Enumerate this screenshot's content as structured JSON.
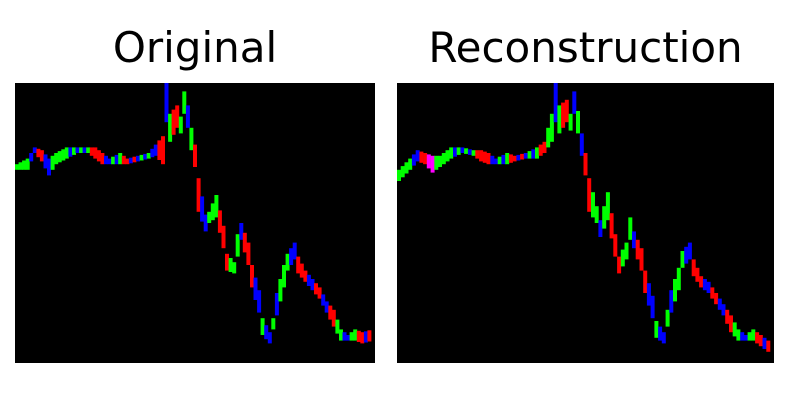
{
  "panels": [
    {
      "title": "Original",
      "background": "#000000",
      "trace": [
        {
          "p": 0.0,
          "v": 0.3,
          "s": 0.01,
          "c": "#00ff00"
        },
        {
          "p": 0.03,
          "v": 0.29,
          "s": 0.02,
          "c": "#00ff00"
        },
        {
          "p": 0.05,
          "v": 0.24,
          "s": 0.01,
          "c": "#0000ff"
        },
        {
          "p": 0.07,
          "v": 0.26,
          "s": 0.02,
          "c": "#ff0000"
        },
        {
          "p": 0.09,
          "v": 0.3,
          "s": 0.03,
          "c": "#0000ff"
        },
        {
          "p": 0.11,
          "v": 0.27,
          "s": 0.02,
          "c": "#00ff00"
        },
        {
          "p": 0.14,
          "v": 0.25,
          "s": 0.02,
          "c": "#00ff00"
        },
        {
          "p": 0.17,
          "v": 0.24,
          "s": 0.01,
          "c": "#0000ff"
        },
        {
          "p": 0.2,
          "v": 0.24,
          "s": 0.01,
          "c": "#00ff00"
        },
        {
          "p": 0.22,
          "v": 0.25,
          "s": 0.02,
          "c": "#ff0000"
        },
        {
          "p": 0.24,
          "v": 0.27,
          "s": 0.02,
          "c": "#ff0000"
        },
        {
          "p": 0.26,
          "v": 0.28,
          "s": 0.01,
          "c": "#0000ff"
        },
        {
          "p": 0.29,
          "v": 0.27,
          "s": 0.02,
          "c": "#00ff00"
        },
        {
          "p": 0.31,
          "v": 0.28,
          "s": 0.01,
          "c": "#ff0000"
        },
        {
          "p": 0.34,
          "v": 0.27,
          "s": 0.01,
          "c": "#0000ff"
        },
        {
          "p": 0.37,
          "v": 0.26,
          "s": 0.01,
          "c": "#00ff00"
        },
        {
          "p": 0.39,
          "v": 0.24,
          "s": 0.02,
          "c": "#0000ff"
        },
        {
          "p": 0.41,
          "v": 0.24,
          "s": 0.05,
          "c": "#ff0000"
        },
        {
          "p": 0.42,
          "v": 0.06,
          "s": 0.08,
          "c": "#0000ff"
        },
        {
          "p": 0.43,
          "v": 0.16,
          "s": 0.05,
          "c": "#00ff00"
        },
        {
          "p": 0.45,
          "v": 0.12,
          "s": 0.04,
          "c": "#ff0000"
        },
        {
          "p": 0.46,
          "v": 0.15,
          "s": 0.03,
          "c": "#00ff00"
        },
        {
          "p": 0.47,
          "v": 0.07,
          "s": 0.04,
          "c": "#00ff00"
        },
        {
          "p": 0.48,
          "v": 0.12,
          "s": 0.04,
          "c": "#0000ff"
        },
        {
          "p": 0.49,
          "v": 0.2,
          "s": 0.04,
          "c": "#00ff00"
        },
        {
          "p": 0.5,
          "v": 0.26,
          "s": 0.04,
          "c": "#ff0000"
        },
        {
          "p": 0.51,
          "v": 0.4,
          "s": 0.06,
          "c": "#ff0000"
        },
        {
          "p": 0.53,
          "v": 0.5,
          "s": 0.03,
          "c": "#0000ff"
        },
        {
          "p": 0.54,
          "v": 0.48,
          "s": 0.02,
          "c": "#00ff00"
        },
        {
          "p": 0.56,
          "v": 0.44,
          "s": 0.04,
          "c": "#00ff00"
        },
        {
          "p": 0.58,
          "v": 0.55,
          "s": 0.04,
          "c": "#ff0000"
        },
        {
          "p": 0.59,
          "v": 0.64,
          "s": 0.03,
          "c": "#ff0000"
        },
        {
          "p": 0.61,
          "v": 0.66,
          "s": 0.02,
          "c": "#00ff00"
        },
        {
          "p": 0.62,
          "v": 0.58,
          "s": 0.04,
          "c": "#00ff00"
        },
        {
          "p": 0.63,
          "v": 0.53,
          "s": 0.03,
          "c": "#0000ff"
        },
        {
          "p": 0.65,
          "v": 0.61,
          "s": 0.04,
          "c": "#ff0000"
        },
        {
          "p": 0.66,
          "v": 0.69,
          "s": 0.04,
          "c": "#ff0000"
        },
        {
          "p": 0.68,
          "v": 0.78,
          "s": 0.04,
          "c": "#0000ff"
        },
        {
          "p": 0.69,
          "v": 0.87,
          "s": 0.03,
          "c": "#00ff00"
        },
        {
          "p": 0.71,
          "v": 0.91,
          "s": 0.02,
          "c": "#0000ff"
        },
        {
          "p": 0.72,
          "v": 0.86,
          "s": 0.02,
          "c": "#00ff00"
        },
        {
          "p": 0.73,
          "v": 0.79,
          "s": 0.04,
          "c": "#0000ff"
        },
        {
          "p": 0.75,
          "v": 0.69,
          "s": 0.04,
          "c": "#00ff00"
        },
        {
          "p": 0.76,
          "v": 0.64,
          "s": 0.03,
          "c": "#00ff00"
        },
        {
          "p": 0.78,
          "v": 0.6,
          "s": 0.03,
          "c": "#0000ff"
        },
        {
          "p": 0.79,
          "v": 0.65,
          "s": 0.03,
          "c": "#ff0000"
        },
        {
          "p": 0.81,
          "v": 0.69,
          "s": 0.02,
          "c": "#ff0000"
        },
        {
          "p": 0.83,
          "v": 0.72,
          "s": 0.02,
          "c": "#0000ff"
        },
        {
          "p": 0.85,
          "v": 0.75,
          "s": 0.02,
          "c": "#ff0000"
        },
        {
          "p": 0.87,
          "v": 0.8,
          "s": 0.02,
          "c": "#0000ff"
        },
        {
          "p": 0.89,
          "v": 0.84,
          "s": 0.03,
          "c": "#ff0000"
        },
        {
          "p": 0.91,
          "v": 0.9,
          "s": 0.02,
          "c": "#00ff00"
        },
        {
          "p": 0.93,
          "v": 0.91,
          "s": 0.01,
          "c": "#0000ff"
        },
        {
          "p": 0.95,
          "v": 0.9,
          "s": 0.02,
          "c": "#00ff00"
        },
        {
          "p": 0.97,
          "v": 0.91,
          "s": 0.02,
          "c": "#ff0000"
        },
        {
          "p": 1.0,
          "v": 0.9,
          "s": 0.02,
          "c": "#0000ff"
        }
      ]
    },
    {
      "title": "Reconstruction",
      "background": "#000000",
      "trace": [
        {
          "p": 0.0,
          "v": 0.33,
          "s": 0.02,
          "c": "#00ff00"
        },
        {
          "p": 0.03,
          "v": 0.29,
          "s": 0.02,
          "c": "#00ff00"
        },
        {
          "p": 0.05,
          "v": 0.26,
          "s": 0.02,
          "c": "#0000ff"
        },
        {
          "p": 0.07,
          "v": 0.27,
          "s": 0.02,
          "c": "#ff0000"
        },
        {
          "p": 0.09,
          "v": 0.29,
          "s": 0.03,
          "c": "#ff00ff"
        },
        {
          "p": 0.11,
          "v": 0.28,
          "s": 0.02,
          "c": "#00ff00"
        },
        {
          "p": 0.14,
          "v": 0.25,
          "s": 0.02,
          "c": "#00ff00"
        },
        {
          "p": 0.17,
          "v": 0.24,
          "s": 0.01,
          "c": "#0000ff"
        },
        {
          "p": 0.2,
          "v": 0.25,
          "s": 0.01,
          "c": "#00ff00"
        },
        {
          "p": 0.22,
          "v": 0.26,
          "s": 0.02,
          "c": "#ff0000"
        },
        {
          "p": 0.24,
          "v": 0.27,
          "s": 0.02,
          "c": "#ff0000"
        },
        {
          "p": 0.26,
          "v": 0.28,
          "s": 0.01,
          "c": "#0000ff"
        },
        {
          "p": 0.29,
          "v": 0.27,
          "s": 0.02,
          "c": "#00ff00"
        },
        {
          "p": 0.31,
          "v": 0.27,
          "s": 0.01,
          "c": "#ff0000"
        },
        {
          "p": 0.34,
          "v": 0.26,
          "s": 0.01,
          "c": "#0000ff"
        },
        {
          "p": 0.37,
          "v": 0.25,
          "s": 0.02,
          "c": "#00ff00"
        },
        {
          "p": 0.39,
          "v": 0.23,
          "s": 0.02,
          "c": "#ff0000"
        },
        {
          "p": 0.41,
          "v": 0.16,
          "s": 0.05,
          "c": "#00ff00"
        },
        {
          "p": 0.42,
          "v": 0.06,
          "s": 0.08,
          "c": "#0000ff"
        },
        {
          "p": 0.43,
          "v": 0.13,
          "s": 0.05,
          "c": "#00ff00"
        },
        {
          "p": 0.45,
          "v": 0.1,
          "s": 0.04,
          "c": "#ff0000"
        },
        {
          "p": 0.46,
          "v": 0.14,
          "s": 0.03,
          "c": "#00ff00"
        },
        {
          "p": 0.47,
          "v": 0.07,
          "s": 0.04,
          "c": "#0000ff"
        },
        {
          "p": 0.48,
          "v": 0.14,
          "s": 0.04,
          "c": "#00ff00"
        },
        {
          "p": 0.49,
          "v": 0.22,
          "s": 0.04,
          "c": "#0000ff"
        },
        {
          "p": 0.5,
          "v": 0.29,
          "s": 0.04,
          "c": "#ff0000"
        },
        {
          "p": 0.51,
          "v": 0.4,
          "s": 0.06,
          "c": "#ff0000"
        },
        {
          "p": 0.53,
          "v": 0.47,
          "s": 0.03,
          "c": "#00ff00"
        },
        {
          "p": 0.54,
          "v": 0.52,
          "s": 0.03,
          "c": "#0000ff"
        },
        {
          "p": 0.56,
          "v": 0.44,
          "s": 0.05,
          "c": "#00ff00"
        },
        {
          "p": 0.58,
          "v": 0.58,
          "s": 0.04,
          "c": "#ff0000"
        },
        {
          "p": 0.59,
          "v": 0.65,
          "s": 0.03,
          "c": "#ff0000"
        },
        {
          "p": 0.61,
          "v": 0.6,
          "s": 0.03,
          "c": "#00ff00"
        },
        {
          "p": 0.62,
          "v": 0.52,
          "s": 0.04,
          "c": "#00ff00"
        },
        {
          "p": 0.63,
          "v": 0.56,
          "s": 0.03,
          "c": "#0000ff"
        },
        {
          "p": 0.65,
          "v": 0.63,
          "s": 0.04,
          "c": "#ff0000"
        },
        {
          "p": 0.66,
          "v": 0.71,
          "s": 0.04,
          "c": "#ff0000"
        },
        {
          "p": 0.68,
          "v": 0.8,
          "s": 0.04,
          "c": "#0000ff"
        },
        {
          "p": 0.69,
          "v": 0.88,
          "s": 0.03,
          "c": "#00ff00"
        },
        {
          "p": 0.71,
          "v": 0.91,
          "s": 0.02,
          "c": "#0000ff"
        },
        {
          "p": 0.72,
          "v": 0.84,
          "s": 0.03,
          "c": "#00ff00"
        },
        {
          "p": 0.73,
          "v": 0.78,
          "s": 0.04,
          "c": "#0000ff"
        },
        {
          "p": 0.75,
          "v": 0.7,
          "s": 0.04,
          "c": "#00ff00"
        },
        {
          "p": 0.76,
          "v": 0.63,
          "s": 0.03,
          "c": "#00ff00"
        },
        {
          "p": 0.78,
          "v": 0.6,
          "s": 0.03,
          "c": "#0000ff"
        },
        {
          "p": 0.79,
          "v": 0.66,
          "s": 0.03,
          "c": "#ff0000"
        },
        {
          "p": 0.81,
          "v": 0.71,
          "s": 0.02,
          "c": "#ff0000"
        },
        {
          "p": 0.83,
          "v": 0.73,
          "s": 0.02,
          "c": "#0000ff"
        },
        {
          "p": 0.85,
          "v": 0.77,
          "s": 0.02,
          "c": "#ff0000"
        },
        {
          "p": 0.87,
          "v": 0.81,
          "s": 0.02,
          "c": "#0000ff"
        },
        {
          "p": 0.89,
          "v": 0.86,
          "s": 0.03,
          "c": "#ff0000"
        },
        {
          "p": 0.91,
          "v": 0.9,
          "s": 0.02,
          "c": "#00ff00"
        },
        {
          "p": 0.93,
          "v": 0.91,
          "s": 0.01,
          "c": "#0000ff"
        },
        {
          "p": 0.95,
          "v": 0.9,
          "s": 0.02,
          "c": "#00ff00"
        },
        {
          "p": 0.97,
          "v": 0.92,
          "s": 0.02,
          "c": "#ff0000"
        },
        {
          "p": 1.0,
          "v": 0.95,
          "s": 0.02,
          "c": "#0000ff"
        }
      ]
    }
  ]
}
